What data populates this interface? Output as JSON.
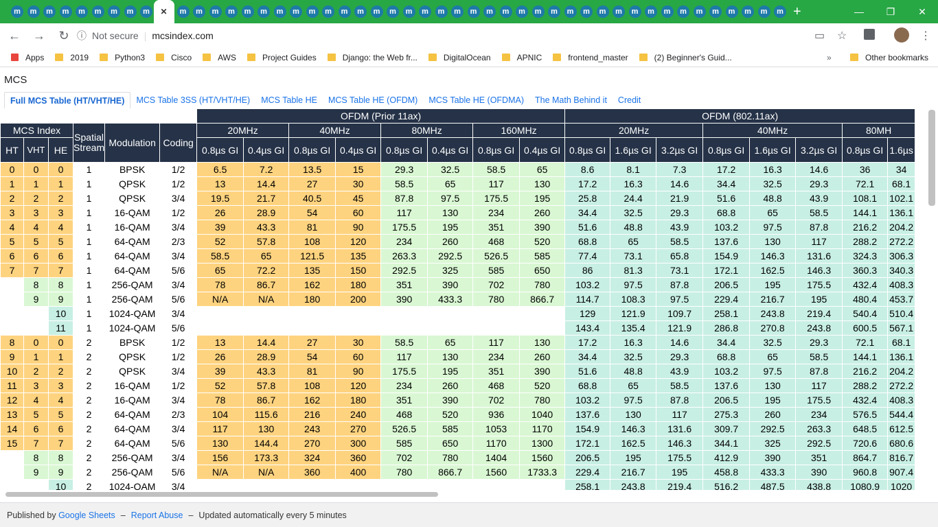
{
  "browser": {
    "url": "mcsindex.com",
    "security": "Not secure",
    "bookmarks": [
      "Apps",
      "2019",
      "Python3",
      "Cisco",
      "AWS",
      "Project Guides",
      "Django: the Web fr...",
      "DigitalOcean",
      "APNIC",
      "frontend_master",
      "(2) Beginner's Guid..."
    ],
    "other_bookmarks": "Other bookmarks"
  },
  "page": {
    "title": "MCS",
    "tabs": [
      "Full MCS Table (HT/VHT/HE)",
      "MCS Table 3SS (HT/VHT/HE)",
      "MCS Table HE",
      "MCS Table HE (OFDM)",
      "MCS Table HE (OFDMA)",
      "The Math Behind it",
      "Credit"
    ],
    "active_tab": 0
  },
  "table": {
    "group1": "OFDM (Prior 11ax)",
    "group2": "OFDM (802.11ax)",
    "mcs_index": "MCS Index",
    "spatial_stream": "Spatial Stream",
    "modulation": "Modulation",
    "coding": "Coding",
    "idx_cols": [
      "HT",
      "VHT",
      "HE"
    ],
    "bw1": [
      "20MHz",
      "40MHz",
      "80MHz",
      "160MHz"
    ],
    "bw2": [
      "20MHz",
      "40MHz",
      "80MH"
    ],
    "gi1": [
      "0.8µs GI",
      "0.4µs GI"
    ],
    "gi2": [
      "0.8µs GI",
      "1.6µs GI",
      "3.2µs GI"
    ],
    "gi2_last": [
      "0.8µs GI",
      "1.6µs"
    ],
    "rows": [
      [
        "0",
        "0",
        "0",
        "1",
        "BPSK",
        "1/2",
        "6.5",
        "7.2",
        "13.5",
        "15",
        "29.3",
        "32.5",
        "58.5",
        "65",
        "8.6",
        "8.1",
        "7.3",
        "17.2",
        "16.3",
        "14.6",
        "36",
        "34"
      ],
      [
        "1",
        "1",
        "1",
        "1",
        "QPSK",
        "1/2",
        "13",
        "14.4",
        "27",
        "30",
        "58.5",
        "65",
        "117",
        "130",
        "17.2",
        "16.3",
        "14.6",
        "34.4",
        "32.5",
        "29.3",
        "72.1",
        "68.1"
      ],
      [
        "2",
        "2",
        "2",
        "1",
        "QPSK",
        "3/4",
        "19.5",
        "21.7",
        "40.5",
        "45",
        "87.8",
        "97.5",
        "175.5",
        "195",
        "25.8",
        "24.4",
        "21.9",
        "51.6",
        "48.8",
        "43.9",
        "108.1",
        "102.1"
      ],
      [
        "3",
        "3",
        "3",
        "1",
        "16-QAM",
        "1/2",
        "26",
        "28.9",
        "54",
        "60",
        "117",
        "130",
        "234",
        "260",
        "34.4",
        "32.5",
        "29.3",
        "68.8",
        "65",
        "58.5",
        "144.1",
        "136.1"
      ],
      [
        "4",
        "4",
        "4",
        "1",
        "16-QAM",
        "3/4",
        "39",
        "43.3",
        "81",
        "90",
        "175.5",
        "195",
        "351",
        "390",
        "51.6",
        "48.8",
        "43.9",
        "103.2",
        "97.5",
        "87.8",
        "216.2",
        "204.2"
      ],
      [
        "5",
        "5",
        "5",
        "1",
        "64-QAM",
        "2/3",
        "52",
        "57.8",
        "108",
        "120",
        "234",
        "260",
        "468",
        "520",
        "68.8",
        "65",
        "58.5",
        "137.6",
        "130",
        "117",
        "288.2",
        "272.2"
      ],
      [
        "6",
        "6",
        "6",
        "1",
        "64-QAM",
        "3/4",
        "58.5",
        "65",
        "121.5",
        "135",
        "263.3",
        "292.5",
        "526.5",
        "585",
        "77.4",
        "73.1",
        "65.8",
        "154.9",
        "146.3",
        "131.6",
        "324.3",
        "306.3"
      ],
      [
        "7",
        "7",
        "7",
        "1",
        "64-QAM",
        "5/6",
        "65",
        "72.2",
        "135",
        "150",
        "292.5",
        "325",
        "585",
        "650",
        "86",
        "81.3",
        "73.1",
        "172.1",
        "162.5",
        "146.3",
        "360.3",
        "340.3"
      ],
      [
        "",
        "8",
        "8",
        "1",
        "256-QAM",
        "3/4",
        "78",
        "86.7",
        "162",
        "180",
        "351",
        "390",
        "702",
        "780",
        "103.2",
        "97.5",
        "87.8",
        "206.5",
        "195",
        "175.5",
        "432.4",
        "408.3"
      ],
      [
        "",
        "9",
        "9",
        "1",
        "256-QAM",
        "5/6",
        "N/A",
        "N/A",
        "180",
        "200",
        "390",
        "433.3",
        "780",
        "866.7",
        "114.7",
        "108.3",
        "97.5",
        "229.4",
        "216.7",
        "195",
        "480.4",
        "453.7"
      ],
      [
        "",
        "",
        "10",
        "1",
        "1024-QAM",
        "3/4",
        "",
        "",
        "",
        "",
        "",
        "",
        "",
        "",
        "129",
        "121.9",
        "109.7",
        "258.1",
        "243.8",
        "219.4",
        "540.4",
        "510.4"
      ],
      [
        "",
        "",
        "11",
        "1",
        "1024-QAM",
        "5/6",
        "",
        "",
        "",
        "",
        "",
        "",
        "",
        "",
        "143.4",
        "135.4",
        "121.9",
        "286.8",
        "270.8",
        "243.8",
        "600.5",
        "567.1"
      ],
      [
        "8",
        "0",
        "0",
        "2",
        "BPSK",
        "1/2",
        "13",
        "14.4",
        "27",
        "30",
        "58.5",
        "65",
        "117",
        "130",
        "17.2",
        "16.3",
        "14.6",
        "34.4",
        "32.5",
        "29.3",
        "72.1",
        "68.1"
      ],
      [
        "9",
        "1",
        "1",
        "2",
        "QPSK",
        "1/2",
        "26",
        "28.9",
        "54",
        "60",
        "117",
        "130",
        "234",
        "260",
        "34.4",
        "32.5",
        "29.3",
        "68.8",
        "65",
        "58.5",
        "144.1",
        "136.1"
      ],
      [
        "10",
        "2",
        "2",
        "2",
        "QPSK",
        "3/4",
        "39",
        "43.3",
        "81",
        "90",
        "175.5",
        "195",
        "351",
        "390",
        "51.6",
        "48.8",
        "43.9",
        "103.2",
        "97.5",
        "87.8",
        "216.2",
        "204.2"
      ],
      [
        "11",
        "3",
        "3",
        "2",
        "16-QAM",
        "1/2",
        "52",
        "57.8",
        "108",
        "120",
        "234",
        "260",
        "468",
        "520",
        "68.8",
        "65",
        "58.5",
        "137.6",
        "130",
        "117",
        "288.2",
        "272.2"
      ],
      [
        "12",
        "4",
        "4",
        "2",
        "16-QAM",
        "3/4",
        "78",
        "86.7",
        "162",
        "180",
        "351",
        "390",
        "702",
        "780",
        "103.2",
        "97.5",
        "87.8",
        "206.5",
        "195",
        "175.5",
        "432.4",
        "408.3"
      ],
      [
        "13",
        "5",
        "5",
        "2",
        "64-QAM",
        "2/3",
        "104",
        "115.6",
        "216",
        "240",
        "468",
        "520",
        "936",
        "1040",
        "137.6",
        "130",
        "117",
        "275.3",
        "260",
        "234",
        "576.5",
        "544.4"
      ],
      [
        "14",
        "6",
        "6",
        "2",
        "64-QAM",
        "3/4",
        "117",
        "130",
        "243",
        "270",
        "526.5",
        "585",
        "1053",
        "1170",
        "154.9",
        "146.3",
        "131.6",
        "309.7",
        "292.5",
        "263.3",
        "648.5",
        "612.5"
      ],
      [
        "15",
        "7",
        "7",
        "2",
        "64-QAM",
        "5/6",
        "130",
        "144.4",
        "270",
        "300",
        "585",
        "650",
        "1170",
        "1300",
        "172.1",
        "162.5",
        "146.3",
        "344.1",
        "325",
        "292.5",
        "720.6",
        "680.6"
      ],
      [
        "",
        "8",
        "8",
        "2",
        "256-QAM",
        "3/4",
        "156",
        "173.3",
        "324",
        "360",
        "702",
        "780",
        "1404",
        "1560",
        "206.5",
        "195",
        "175.5",
        "412.9",
        "390",
        "351",
        "864.7",
        "816.7"
      ],
      [
        "",
        "9",
        "9",
        "2",
        "256-QAM",
        "5/6",
        "N/A",
        "N/A",
        "360",
        "400",
        "780",
        "866.7",
        "1560",
        "1733.3",
        "229.4",
        "216.7",
        "195",
        "458.8",
        "433.3",
        "390",
        "960.8",
        "907.4"
      ],
      [
        "",
        "",
        "10",
        "2",
        "1024-QAM",
        "3/4",
        "",
        "",
        "",
        "",
        "",
        "",
        "",
        "",
        "258.1",
        "243.8",
        "219.4",
        "516.2",
        "487.5",
        "438.8",
        "1080.9",
        "1020"
      ]
    ]
  },
  "footer": {
    "published_by": "Published by",
    "google_sheets": "Google Sheets",
    "report_abuse": "Report Abuse",
    "updated": "Updated automatically every 5 minutes"
  },
  "colors": {
    "header": "#253247",
    "ht": "#fed37f",
    "vht": "#d9f7d3",
    "he": "#c8efe4",
    "link": "#1a73e8"
  }
}
